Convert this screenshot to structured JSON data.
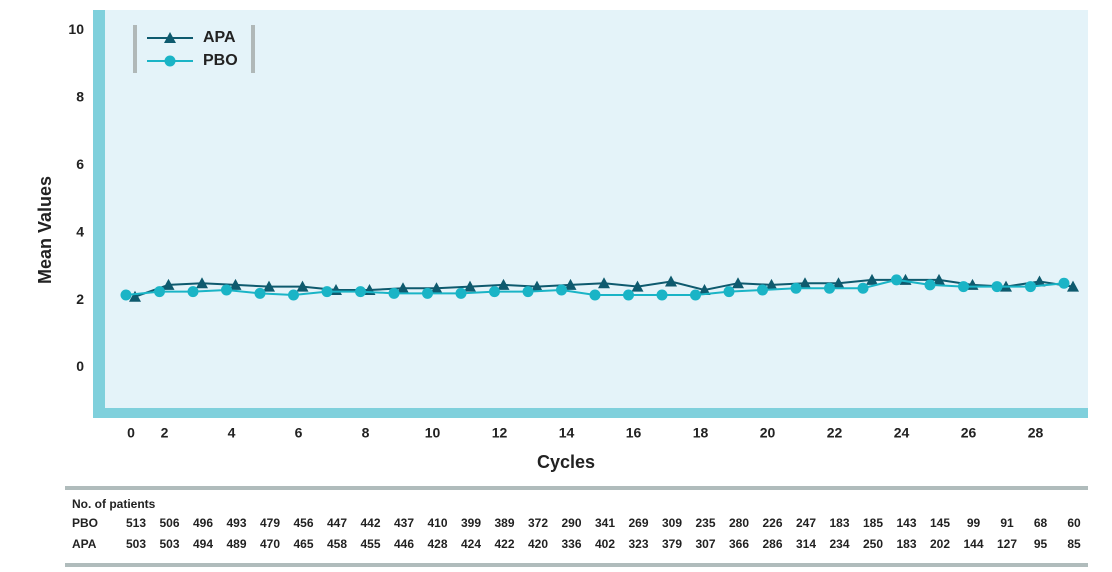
{
  "chart_data": {
    "type": "line",
    "y_label": "Mean Values",
    "x_label": "Cycles",
    "categories": [
      "0",
      "2",
      null,
      "4",
      null,
      "6",
      null,
      "8",
      null,
      "10",
      null,
      "12",
      null,
      "14",
      null,
      "16",
      null,
      "18",
      null,
      "20",
      null,
      "22",
      null,
      "24",
      null,
      "26",
      null,
      "28",
      null
    ],
    "ylim": [
      -1.2,
      10.6
    ],
    "yticks": [
      0,
      2,
      4,
      6,
      8,
      10
    ],
    "legend": "upper-left",
    "series": [
      {
        "name": "APA",
        "color": "#0e5a6e",
        "marker": "triangle",
        "values": [
          2.1,
          2.45,
          2.5,
          2.45,
          2.4,
          2.4,
          2.3,
          2.3,
          2.35,
          2.35,
          2.4,
          2.45,
          2.4,
          2.45,
          2.5,
          2.4,
          2.55,
          2.3,
          2.5,
          2.45,
          2.5,
          2.5,
          2.6,
          2.6,
          2.6,
          2.45,
          2.4,
          2.55,
          2.4
        ]
      },
      {
        "name": "PBO",
        "color": "#1ab4c6",
        "marker": "circle",
        "values": [
          2.15,
          2.25,
          2.25,
          2.3,
          2.2,
          2.15,
          2.25,
          2.25,
          2.2,
          2.2,
          2.2,
          2.25,
          2.25,
          2.3,
          2.15,
          2.15,
          2.15,
          2.15,
          2.25,
          2.3,
          2.35,
          2.35,
          2.35,
          2.6,
          2.45,
          2.4,
          2.4,
          2.4,
          2.5
        ]
      }
    ],
    "table": {
      "title": "No. of patients",
      "rows": [
        {
          "label": "PBO",
          "values": [
            513,
            506,
            496,
            493,
            479,
            456,
            447,
            442,
            437,
            410,
            399,
            389,
            372,
            290,
            341,
            269,
            309,
            235,
            280,
            226,
            247,
            183,
            185,
            143,
            145,
            99,
            91,
            68,
            60
          ]
        },
        {
          "label": "APA",
          "values": [
            503,
            503,
            494,
            489,
            470,
            465,
            458,
            455,
            446,
            428,
            424,
            422,
            420,
            336,
            402,
            323,
            379,
            307,
            366,
            286,
            314,
            234,
            250,
            183,
            202,
            144,
            127,
            95,
            85
          ]
        }
      ]
    }
  }
}
